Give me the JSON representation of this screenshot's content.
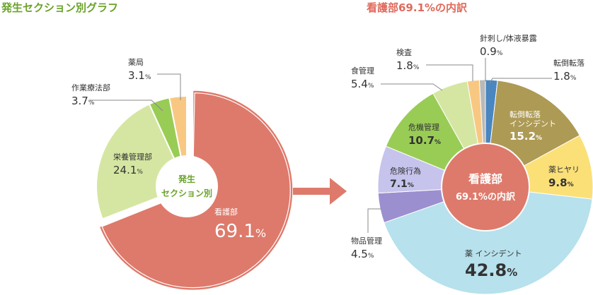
{
  "chart_data": [
    {
      "type": "pie",
      "title": "発生セクション別グラフ",
      "center_label": [
        "発生",
        "セクション別"
      ],
      "categories": [
        "看護部",
        "栄養管理部",
        "作業療法部",
        "薬局"
      ],
      "values": [
        69.1,
        24.1,
        3.7,
        3.1
      ],
      "value_text": [
        "69.1",
        "24.1",
        "3.7",
        "3.1"
      ],
      "unit": "%",
      "colors": [
        "#de7a6b",
        "#d5e6a2",
        "#99cc55",
        "#f8c883"
      ]
    },
    {
      "type": "pie",
      "title": "看護部69.1%の内訳",
      "center_label": [
        "看護部",
        "69.1%の内訳"
      ],
      "categories": [
        "転倒転落",
        "転倒転落\nインシデント",
        "薬ヒヤリ",
        "薬 インシデント",
        "物品管理",
        "危険行為",
        "危機管理",
        "食管理",
        "検査",
        "針刺し/体液暴露"
      ],
      "values": [
        1.8,
        15.2,
        9.8,
        42.8,
        4.5,
        7.1,
        10.7,
        5.4,
        1.8,
        0.9
      ],
      "value_text": [
        "1.8",
        "15.2",
        "9.8",
        "42.8",
        "4.5",
        "7.1",
        "10.7",
        "5.4",
        "1.8",
        "0.9"
      ],
      "unit": "%",
      "colors": [
        "#4a86c0",
        "#ad9a55",
        "#fbe078",
        "#b7e1ec",
        "#9c8fcf",
        "#c6c3ec",
        "#99cc55",
        "#d5e6a2",
        "#f8c883",
        "#b9b9b9"
      ]
    }
  ],
  "colors": {
    "title_left": "#6aa329",
    "title_right": "#e06a5c",
    "arrow": "#de7a6b",
    "center_text_left": "#6aa329",
    "center_right_fill": "#de7a6b"
  }
}
